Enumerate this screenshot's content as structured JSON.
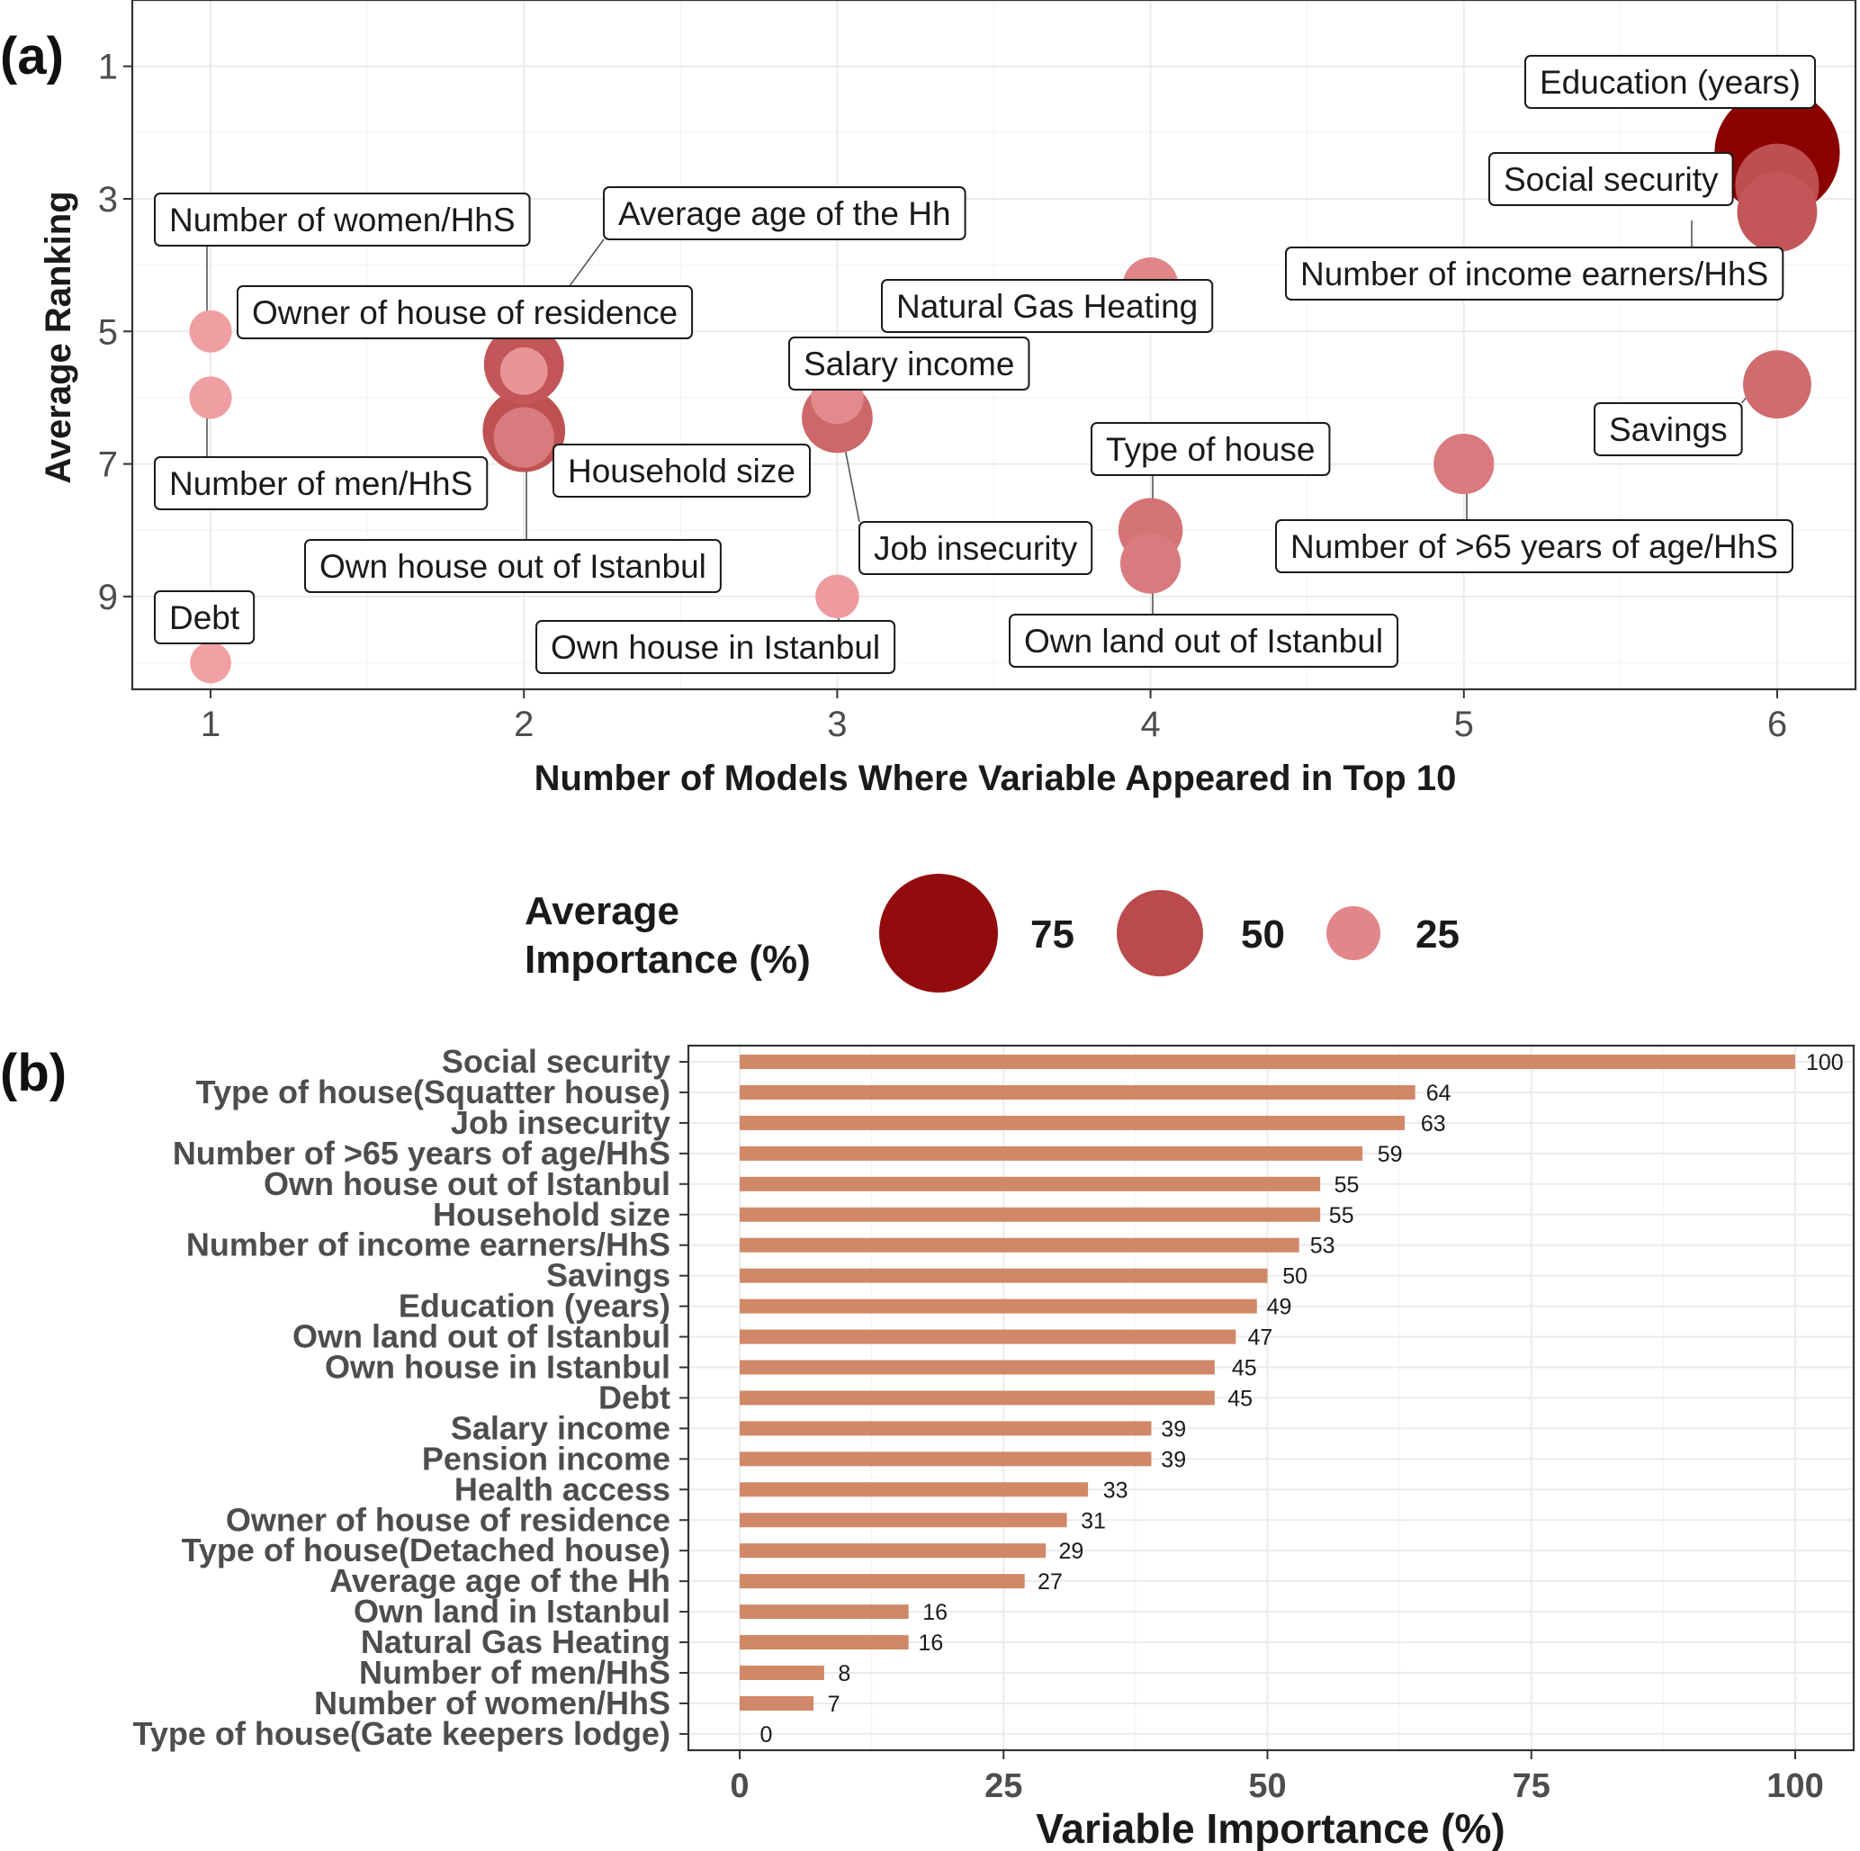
{
  "panel_a_tag": "(a)",
  "panel_b_tag": "(b)",
  "chart_data": [
    {
      "type": "scatter",
      "xlabel": "Number of Models Where Variable Appeared in Top 10",
      "ylabel": "Average Ranking",
      "x_ticks": [
        1,
        2,
        3,
        4,
        5,
        6
      ],
      "y_ticks": [
        1,
        3,
        5,
        7,
        9
      ],
      "xlim": [
        0.75,
        6.25
      ],
      "ylim": [
        10.4,
        0.0
      ],
      "y_reversed": true,
      "grid": true,
      "size_legend": {
        "title_line1": "Average",
        "title_line2": "Importance (%)",
        "values": [
          75,
          50,
          25
        ],
        "placement": "bottom"
      },
      "color_low": "#f1a0a4",
      "color_high": "#8b0000",
      "points": [
        {
          "label": "Education (years)",
          "x": 6,
          "y": 2.3,
          "importance": 80
        },
        {
          "label": "Social security",
          "x": 6,
          "y": 2.8,
          "importance": 48
        },
        {
          "label": "Number of income earners/HhS",
          "x": 6,
          "y": 3.2,
          "importance": 45
        },
        {
          "label": "Savings",
          "x": 6,
          "y": 5.8,
          "importance": 36
        },
        {
          "label": "Number of >65 years of age/HhS",
          "x": 5,
          "y": 7.0,
          "importance": 30
        },
        {
          "label": "Natural Gas Heating",
          "x": 4,
          "y": 4.3,
          "importance": 26
        },
        {
          "label": "Type of house",
          "x": 4,
          "y": 8.0,
          "importance": 33
        },
        {
          "label": "Own land out of Istanbul",
          "x": 4,
          "y": 8.5,
          "importance": 30
        },
        {
          "label": "Salary income",
          "x": 3,
          "y": 6.0,
          "importance": 24
        },
        {
          "label": "Job insecurity",
          "x": 3,
          "y": 6.3,
          "importance": 38
        },
        {
          "label": "Own house in Istanbul",
          "x": 3,
          "y": 9.0,
          "importance": 17
        },
        {
          "label": "Owner of house of residence",
          "x": 2,
          "y": 5.5,
          "importance": 45
        },
        {
          "label": "Household size",
          "x": 2,
          "y": 6.5,
          "importance": 47
        },
        {
          "label": "Average age of the Hh",
          "x": 2,
          "y": 5.6,
          "importance": 20
        },
        {
          "label": "Own house out of Istanbul",
          "x": 2,
          "y": 6.6,
          "importance": 30
        },
        {
          "label": "Number of women/HhS",
          "x": 1,
          "y": 5.0,
          "importance": 16
        },
        {
          "label": "Number of men/HhS",
          "x": 1,
          "y": 6.0,
          "importance": 16
        },
        {
          "label": "Debt",
          "x": 1,
          "y": 10.0,
          "importance": 15
        }
      ]
    },
    {
      "type": "bar",
      "orientation": "horizontal",
      "xlabel": "Variable Importance (%)",
      "xlim": [
        0,
        100
      ],
      "x_ticks": [
        0,
        25,
        50,
        75,
        100
      ],
      "grid": true,
      "bar_color": "#d08868",
      "categories": [
        "Social security",
        "Type of house(Squatter house)",
        "Job insecurity",
        "Number of >65 years of age/HhS",
        "Own house out of Istanbul",
        "Household size",
        "Number of income earners/HhS",
        "Savings",
        "Education (years)",
        "Own land out of Istanbul",
        "Own house in Istanbul",
        "Debt",
        "Salary income",
        "Pension income",
        "Health access",
        "Owner of house of residence",
        "Type of house(Detached house)",
        "Average age of the Hh",
        "Own land in Istanbul",
        "Natural Gas Heating",
        "Number of men/HhS",
        "Number of women/HhS",
        "Type of house(Gate keepers lodge)"
      ],
      "values": [
        100,
        64,
        63,
        59,
        55,
        55,
        53,
        50,
        49,
        47,
        45,
        45,
        39,
        39,
        33,
        31,
        29,
        27,
        16,
        16,
        8,
        7,
        0
      ],
      "value_labels": [
        "100",
        "64",
        "63",
        "59",
        "55",
        "55",
        "53",
        "50",
        "49",
        "47",
        "45",
        "45",
        "39",
        "39",
        "33",
        "31",
        "29",
        "27",
        "16",
        "16",
        "8",
        "7",
        "0"
      ],
      "value_positions": [
        100,
        64,
        63.5,
        59.4,
        55.3,
        54.8,
        53,
        50.4,
        48.9,
        47.1,
        45.6,
        45.2,
        38.9,
        38.9,
        33.4,
        31.3,
        29.2,
        27.2,
        16.3,
        15.9,
        8.3,
        7.3,
        0.9
      ]
    }
  ]
}
